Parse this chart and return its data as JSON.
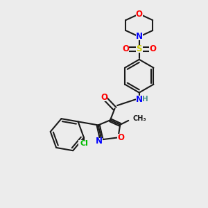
{
  "bg_color": "#ececec",
  "bond_color": "#1a1a1a",
  "bond_width": 1.5,
  "atom_colors": {
    "O": "#ff0000",
    "N": "#0000ff",
    "S": "#cccc00",
    "Cl": "#00bb00",
    "C": "#1a1a1a",
    "H": "#4a9090"
  },
  "font_size": 8.5,
  "small_font": 7.5
}
